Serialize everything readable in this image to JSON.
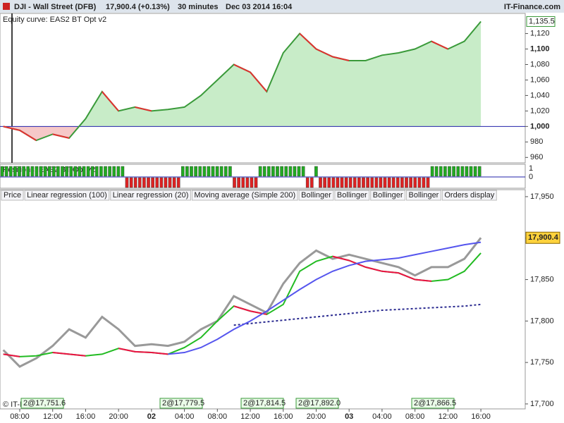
{
  "header": {
    "instrument": "DJI - Wall Street (DFB)",
    "price": "17,900.4 (+0.13%)",
    "timeframe": "30 minutes",
    "date": "Dec 03 2014 16:04",
    "brand": "IT-Finance.com"
  },
  "chart_data": [
    {
      "type": "area",
      "title": "Equity curve: EAS2 BT Opt v2",
      "color": "#3a9a3a",
      "down_color": "#e03030",
      "values": [
        1000,
        995,
        982,
        990,
        985,
        1010,
        1045,
        1020,
        1025,
        1020,
        1022,
        1025,
        1040,
        1060,
        1080,
        1070,
        1045,
        1095,
        1120,
        1100,
        1090,
        1085,
        1085,
        1092,
        1095,
        1100,
        1110,
        1100,
        1110,
        1135.5
      ],
      "last_value_label": "1,135.5",
      "ylim": [
        953,
        1146
      ],
      "yticks": [
        960,
        980,
        {
          "value": 1000,
          "label": "1,000"
        },
        {
          "value": 1020,
          "label": "1,020"
        },
        {
          "value": 1040,
          "label": "1,040"
        },
        {
          "value": 1060,
          "label": "1,060"
        },
        {
          "value": 1080,
          "label": "1,080"
        },
        {
          "value": 1100,
          "label": "1,100"
        },
        {
          "value": 1120,
          "label": "1,120"
        }
      ]
    },
    {
      "type": "bar",
      "title": "Positions: EAS2 BT Opt v2",
      "up_color": "#22aa22",
      "down_color": "#dd2222",
      "values": [
        1,
        1,
        1,
        1,
        1,
        1,
        1,
        1,
        1,
        1,
        1,
        1,
        1,
        1,
        1,
        1,
        1,
        1,
        1,
        1,
        1,
        1,
        1,
        1,
        1,
        1,
        1,
        1,
        1,
        -1,
        -1,
        -1,
        -1,
        -1,
        -1,
        -1,
        -1,
        -1,
        -1,
        -1,
        -1,
        -1,
        1,
        1,
        1,
        1,
        1,
        1,
        1,
        1,
        1,
        1,
        1,
        1,
        -1,
        -1,
        -1,
        -1,
        -1,
        -1,
        1,
        1,
        1,
        1,
        1,
        1,
        1,
        1,
        1,
        1,
        1,
        -1,
        -1,
        1,
        -1,
        -1,
        -1,
        -1,
        -1,
        -1,
        -1,
        -1,
        -1,
        -1,
        -1,
        -1,
        -1,
        -1,
        -1,
        -1,
        -1,
        -1,
        -1,
        -1,
        -1,
        -1,
        -1,
        -1,
        -1,
        -1,
        1,
        1,
        1,
        1,
        1,
        1,
        1,
        1,
        1,
        1,
        1,
        1
      ],
      "ylim": [
        -1,
        1
      ],
      "yticks": [
        0,
        1
      ]
    },
    {
      "type": "line",
      "categories": [
        null,
        "08:00",
        null,
        "12:00",
        null,
        "16:00",
        null,
        "20:00",
        null,
        "02",
        null,
        "04:00",
        null,
        "08:00",
        null,
        "12:00",
        null,
        "16:00",
        null,
        "20:00",
        null,
        "03",
        null,
        "04:00",
        null,
        "08:00",
        null,
        "12:00",
        null,
        "16:00"
      ],
      "series": [
        {
          "name": "Price",
          "color": "#999999",
          "values": [
            17765,
            17745,
            17755,
            17770,
            17790,
            17780,
            17805,
            17790,
            17770,
            17772,
            17770,
            17775,
            17790,
            17800,
            17830,
            17820,
            17810,
            17845,
            17870,
            17885,
            17875,
            17880,
            17875,
            17870,
            17865,
            17855,
            17865,
            17865,
            17875,
            17900.4
          ]
        },
        {
          "name": "Linear regression (100)",
          "color": "#2a2a90",
          "dashed": true,
          "values": [
            null,
            null,
            null,
            null,
            null,
            null,
            null,
            null,
            null,
            null,
            null,
            null,
            null,
            null,
            17795,
            17797,
            17799,
            17801,
            17803,
            17805,
            17807,
            17809,
            17811,
            17813,
            17814,
            17815,
            17816,
            17817,
            17818,
            17820
          ]
        },
        {
          "name": "Linear regression (20)",
          "color": "#22bb22",
          "down_color": "#ee1144",
          "values": [
            17760,
            17757,
            17758,
            17762,
            17760,
            17758,
            17760,
            17767,
            17763,
            17762,
            17760,
            17768,
            17780,
            17800,
            17818,
            17812,
            17808,
            17820,
            17860,
            17872,
            17878,
            17873,
            17865,
            17860,
            17858,
            17850,
            17848,
            17850,
            17860,
            17882
          ]
        },
        {
          "name": "Moving average (Simple 200)",
          "color": "#5555ee",
          "values": [
            null,
            null,
            null,
            null,
            null,
            null,
            null,
            null,
            null,
            null,
            17760,
            17762,
            17768,
            17778,
            17790,
            17800,
            17812,
            17825,
            17838,
            17850,
            17860,
            17867,
            17872,
            17874,
            17876,
            17880,
            17884,
            17888,
            17892,
            17895
          ]
        }
      ],
      "last_value_label": "17,900.4",
      "ylim": [
        17694,
        17944
      ],
      "yticks": [
        {
          "value": 17700,
          "label": "17,700"
        },
        {
          "value": 17750,
          "label": "17,750"
        },
        {
          "value": 17800,
          "label": "17,800"
        },
        {
          "value": 17850,
          "label": "17,850"
        },
        {
          "value": 17900,
          "label": "17,900"
        },
        {
          "value": 17950,
          "label": "17,950"
        }
      ]
    }
  ],
  "tabs": [
    "Bollinger",
    "Bollinger",
    "Bollinger",
    "Bollinger",
    "Orders display"
  ],
  "orders": [
    "2@17,751.6",
    "2@17,779.5",
    "2@17,814.5",
    "2@17,892.0",
    "2@17,866.5"
  ],
  "copyright": "© IT-Finance.com"
}
